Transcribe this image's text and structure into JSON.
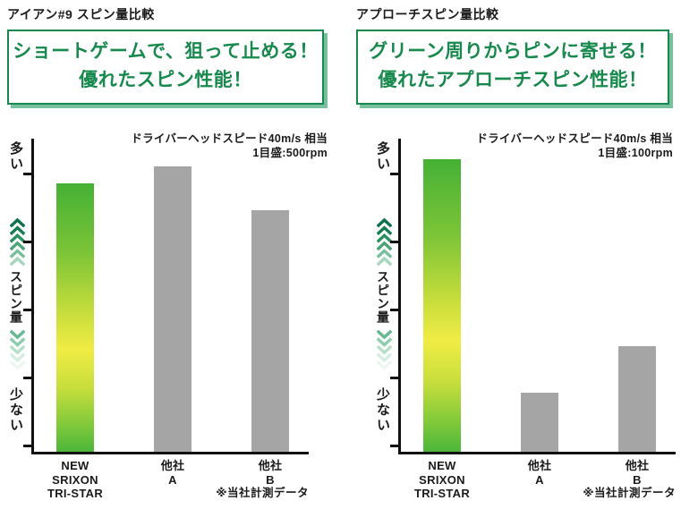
{
  "panels": [
    {
      "title": "アイアン#9 スピン量比較",
      "headline": [
        "ショートゲームで、狙って止める！",
        "優れたスピン性能！"
      ],
      "annotation": [
        "ドライバーヘッドスピード40m/s 相当",
        "1目盛:500rpm"
      ],
      "axis": {
        "top": "多い",
        "mid": "スピン量",
        "bottom": "少ない"
      },
      "footnote": "※当社計測データ"
    },
    {
      "title": "アプローチスピン量比較",
      "headline": [
        "グリーン周りからピンに寄せる！",
        "優れたアプローチスピン性能！"
      ],
      "annotation": [
        "ドライバーヘッドスピード40m/s 相当",
        "1目盛:100rpm"
      ],
      "axis": {
        "top": "多い",
        "mid": "スピン量",
        "bottom": "少ない"
      },
      "footnote": "※当社計測データ"
    }
  ],
  "chart_data": [
    {
      "type": "bar",
      "title": "アイアン#9 スピン量比較",
      "condition": "ドライバーヘッドスピード40m/s 相当",
      "tick_label": "1目盛:500rpm",
      "rpm_per_tick": 500,
      "categories": [
        [
          "NEW",
          "SRIXON",
          "TRI-STAR"
        ],
        [
          "他社",
          "A"
        ],
        [
          "他社",
          "B"
        ]
      ],
      "values_ticks": [
        3.95,
        4.2,
        3.55
      ],
      "values_rpm_relative": [
        1975,
        2100,
        1775
      ],
      "ylabel_top": "多い",
      "ylabel_mid": "スピン量",
      "ylabel_bottom": "少ない",
      "legend_position": "none",
      "grid": false,
      "footnote": "※当社計測データ"
    },
    {
      "type": "bar",
      "title": "アプローチスピン量比較",
      "condition": "ドライバーヘッドスピード40m/s 相当",
      "tick_label": "1目盛:100rpm",
      "rpm_per_tick": 100,
      "categories": [
        [
          "NEW",
          "SRIXON",
          "TRI-STAR"
        ],
        [
          "他社",
          "A"
        ],
        [
          "他社",
          "B"
        ]
      ],
      "values_ticks": [
        4.3,
        0.87,
        1.55
      ],
      "values_rpm_relative": [
        430,
        87,
        155
      ],
      "ylabel_top": "多い",
      "ylabel_mid": "スピン量",
      "ylabel_bottom": "少ない",
      "legend_position": "none",
      "grid": false,
      "footnote": "※当社計測データ"
    }
  ],
  "colors": {
    "accent_green": "#17894d",
    "box_shadow_green": "#79c09e",
    "bar_gray": "#a5a5a5",
    "bar_gradient_top": "#45b135",
    "bar_gradient_mid": "#f0ec44",
    "bar_gradient_bottom": "#4cb63a",
    "axis_black": "#111111",
    "chevron_up": [
      "#0c724b",
      "#177d51",
      "#2b905f",
      "#4aa578",
      "#79bf9b",
      "#a6d6bf"
    ],
    "chevron_down": [
      "#66b993",
      "#8cccaf",
      "#b4dfc9",
      "#d6eee2",
      "#edf7f1"
    ]
  }
}
